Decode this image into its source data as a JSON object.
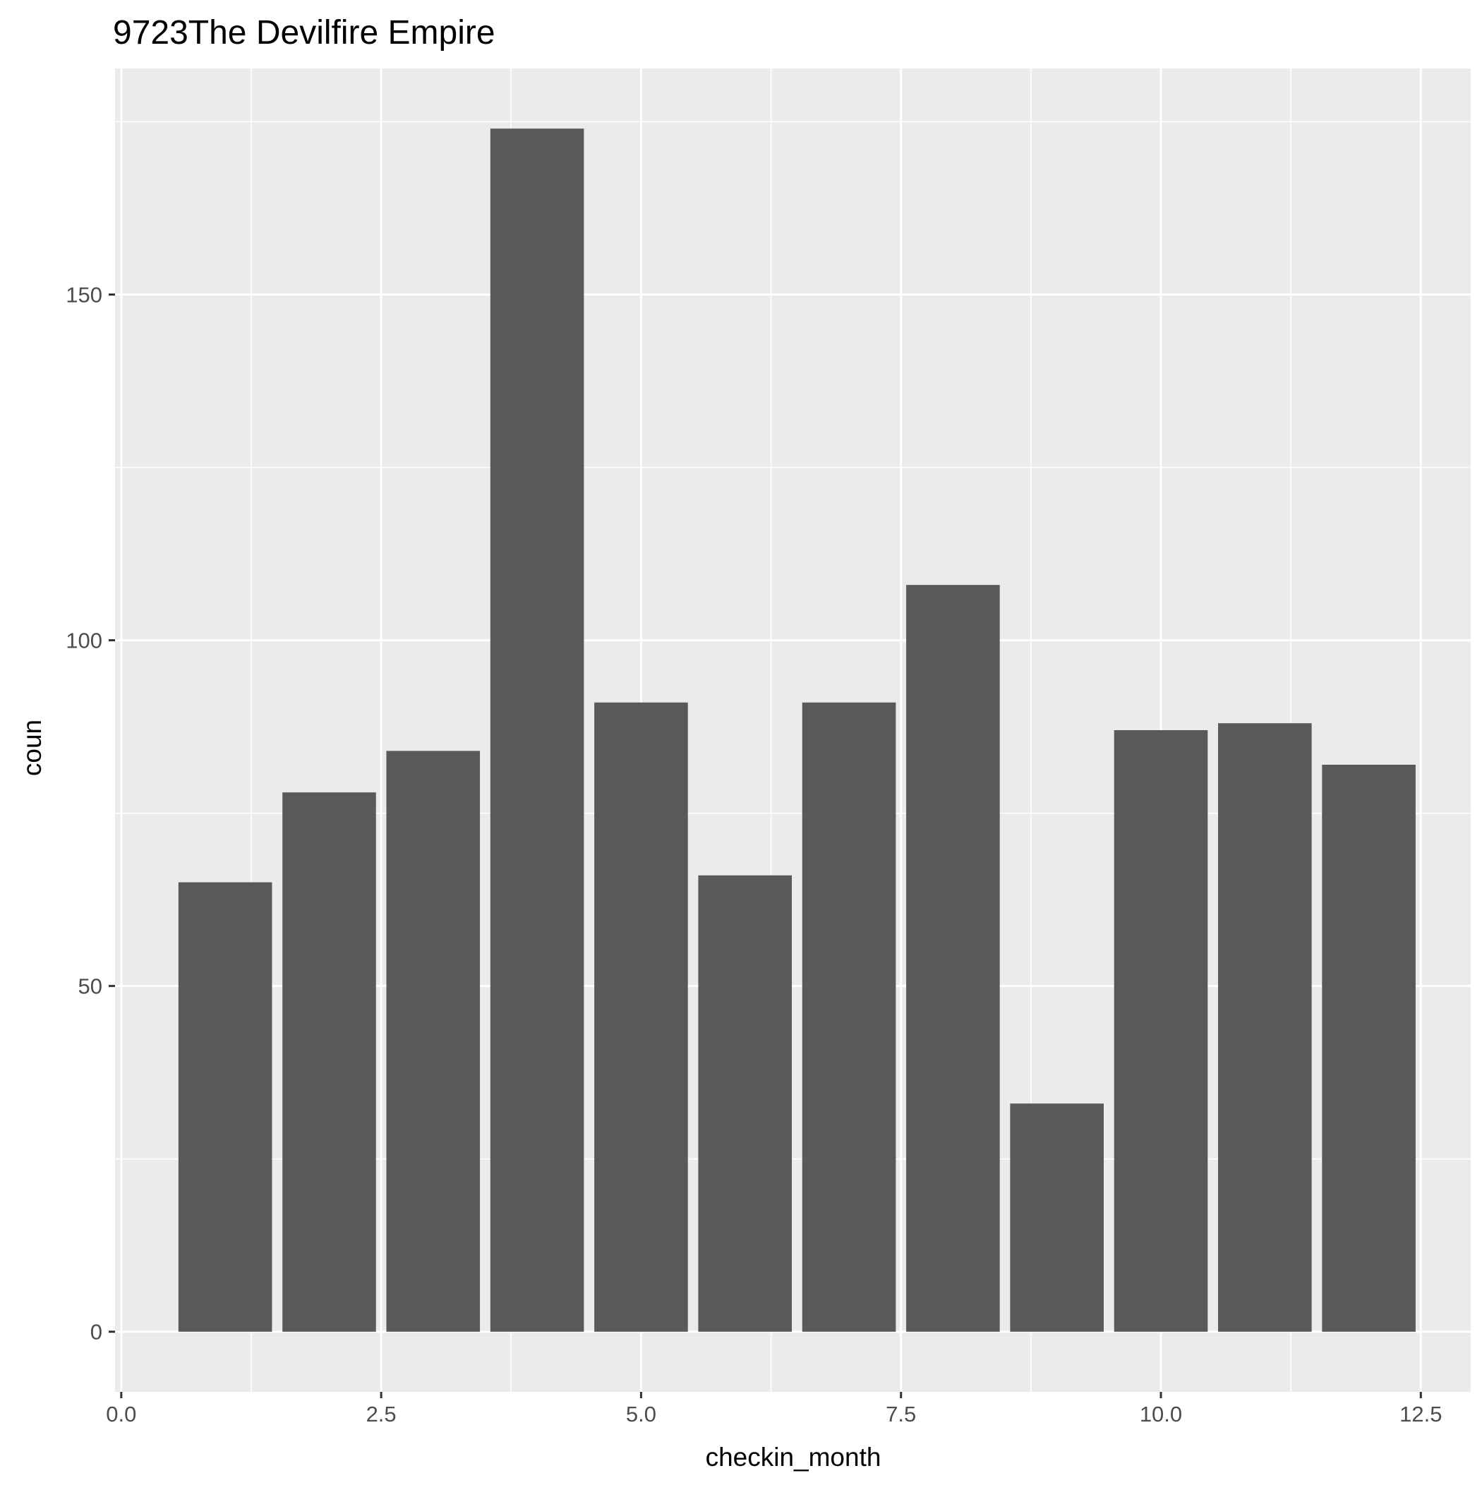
{
  "chart_data": {
    "type": "bar",
    "title": "9723The Devilfire Empire",
    "xlabel": "checkin_month",
    "ylabel": "coun",
    "x": [
      1,
      2,
      3,
      4,
      5,
      6,
      7,
      8,
      9,
      10,
      11,
      12
    ],
    "values": [
      65,
      78,
      84,
      174,
      91,
      66,
      91,
      108,
      33,
      87,
      88,
      82
    ],
    "xlim": [
      -0.06,
      12.98
    ],
    "ylim": [
      -8.7,
      182.7
    ],
    "x_ticks": [
      0,
      2.5,
      5,
      7.5,
      10,
      12.5
    ],
    "x_tick_labels": [
      "0.0",
      "2.5",
      "5.0",
      "7.5",
      "10.0",
      "12.5"
    ],
    "y_ticks": [
      0,
      50,
      100,
      150
    ],
    "y_tick_labels": [
      "0",
      "50",
      "100",
      "150"
    ],
    "grid": true,
    "legend": "none",
    "colors": {
      "panel_background": "#ebebeb",
      "grid_line": "#ffffff",
      "bar_fill": "#595959",
      "tick_mark": "#333333"
    }
  }
}
